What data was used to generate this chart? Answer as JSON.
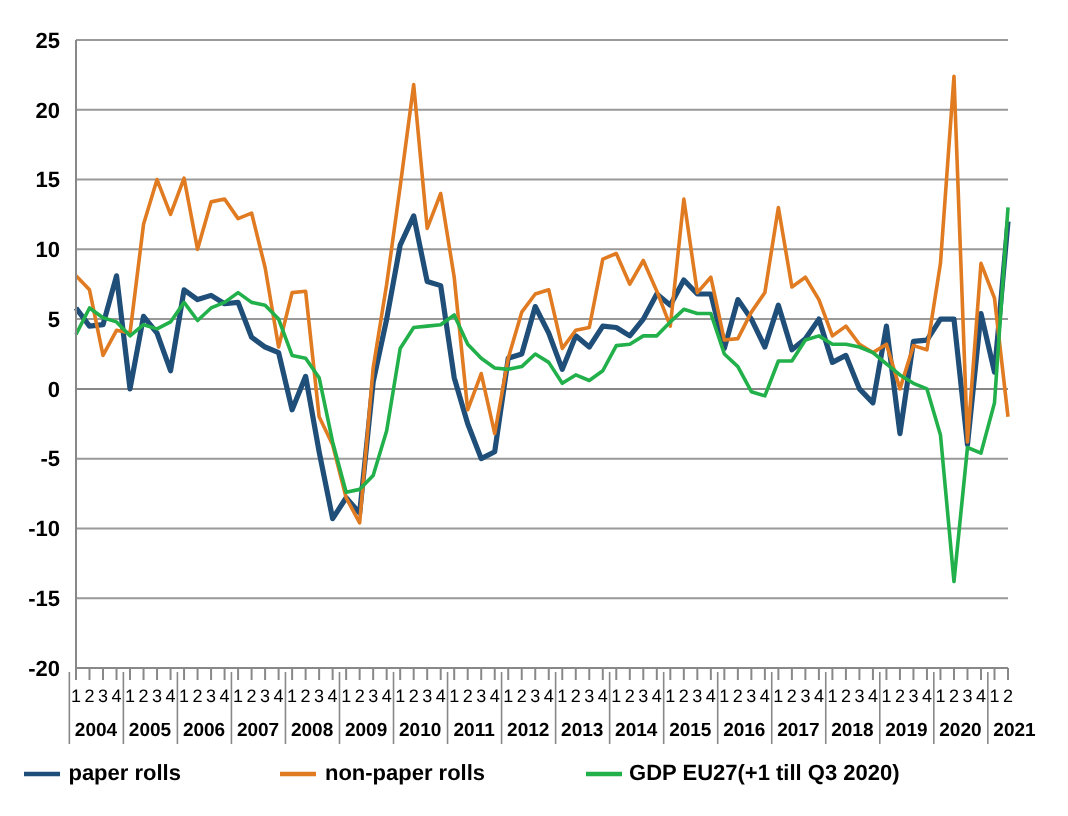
{
  "chart_data": {
    "type": "line",
    "categories": [
      "1",
      "2",
      "3",
      "4",
      "1",
      "2",
      "3",
      "4",
      "1",
      "2",
      "3",
      "4",
      "1",
      "2",
      "3",
      "4",
      "1",
      "2",
      "3",
      "4",
      "1",
      "2",
      "3",
      "4",
      "1",
      "2",
      "3",
      "4",
      "1",
      "2",
      "3",
      "4",
      "1",
      "2",
      "3",
      "4",
      "1",
      "2",
      "3",
      "4",
      "1",
      "2",
      "3",
      "4",
      "1",
      "2",
      "3",
      "4",
      "1",
      "2",
      "3",
      "4",
      "1",
      "2",
      "3",
      "4",
      "1",
      "2",
      "3",
      "4",
      "1",
      "2",
      "3",
      "4",
      "1",
      "2",
      "3",
      "4",
      "1",
      "2"
    ],
    "annotations": [
      "2004",
      "2005",
      "2006",
      "2007",
      "2008",
      "2009",
      "2010",
      "2011",
      "2012",
      "2013",
      "2014",
      "2015",
      "2016",
      "2017",
      "2018",
      "2019",
      "2020",
      "2021"
    ],
    "series": [
      {
        "name": "paper rolls",
        "color": "#1f4e79",
        "values": [
          5.8,
          4.5,
          4.6,
          8.1,
          0,
          5.2,
          4,
          1.3,
          7.1,
          6.4,
          6.7,
          6.1,
          6.2,
          3.7,
          3,
          2.6,
          -1.5,
          0.9,
          -4.5,
          -9.3,
          -7.8,
          -8.9,
          0.5,
          5,
          10.3,
          12.4,
          7.7,
          7.4,
          0.8,
          -2.5,
          -5,
          -4.5,
          2.2,
          2.5,
          5.9,
          4,
          1.4,
          3.8,
          3,
          4.5,
          4.4,
          3.8,
          5,
          6.8,
          6,
          7.8,
          6.8,
          6.8,
          2.9,
          6.4,
          5,
          3,
          6,
          2.8,
          3.6,
          5,
          1.9,
          2.4,
          0,
          -1,
          4.5,
          -3.2,
          3.4,
          3.5,
          5,
          5,
          -4,
          5.4,
          1.2,
          12
        ]
      },
      {
        "name": "non-paper rolls",
        "color": "#e07b22",
        "values": [
          8.1,
          7.1,
          2.4,
          4.2,
          4,
          11.8,
          15,
          12.5,
          15.1,
          10,
          13.4,
          13.6,
          12.2,
          12.6,
          8.7,
          3,
          6.9,
          7,
          -2,
          -4,
          -7.8,
          -9.6,
          1.5,
          7.5,
          14.5,
          21.8,
          11.5,
          14,
          8,
          -1.5,
          1.1,
          -3.2,
          2.2,
          5.5,
          6.8,
          7.1,
          2.9,
          4.2,
          4.4,
          9.3,
          9.7,
          7.5,
          9.2,
          7,
          4.5,
          13.6,
          6.9,
          8,
          3.5,
          3.6,
          5.5,
          6.9,
          13,
          7.3,
          8,
          6.4,
          3.8,
          4.5,
          3.2,
          2.6,
          3.2,
          0,
          3.1,
          2.8,
          9,
          22.4,
          -3.8,
          9,
          6.5,
          -2
        ]
      },
      {
        "name": "GDP EU27(+1 till Q3 2020)",
        "color": "#22b04b",
        "values": [
          3.9,
          5.8,
          5.1,
          4.8,
          3.8,
          4.6,
          4.3,
          4.8,
          6.2,
          4.9,
          5.8,
          6.2,
          6.9,
          6.2,
          6,
          5,
          2.4,
          2.2,
          0.8,
          -3.8,
          -7.4,
          -7.2,
          -6.2,
          -3,
          2.9,
          4.4,
          4.5,
          4.6,
          5.3,
          3.2,
          2.2,
          1.5,
          1.4,
          1.6,
          2.5,
          1.9,
          0.4,
          1,
          0.6,
          1.3,
          3.1,
          3.2,
          3.8,
          3.8,
          4.8,
          5.7,
          5.4,
          5.4,
          2.5,
          1.6,
          -0.2,
          -0.5,
          2,
          2,
          3.5,
          3.8,
          3.2,
          3.2,
          3,
          2.6,
          1.8,
          1,
          0.4,
          0,
          -3.3,
          -13.8,
          -4.2,
          -4.6,
          -1,
          13
        ]
      }
    ],
    "ylim": [
      -20,
      25
    ],
    "yticks": [
      -20,
      -15,
      -10,
      -5,
      0,
      5,
      10,
      15,
      20,
      25
    ],
    "grid": "y",
    "legend": "bottom",
    "marker": "none",
    "line_style": "solid"
  }
}
